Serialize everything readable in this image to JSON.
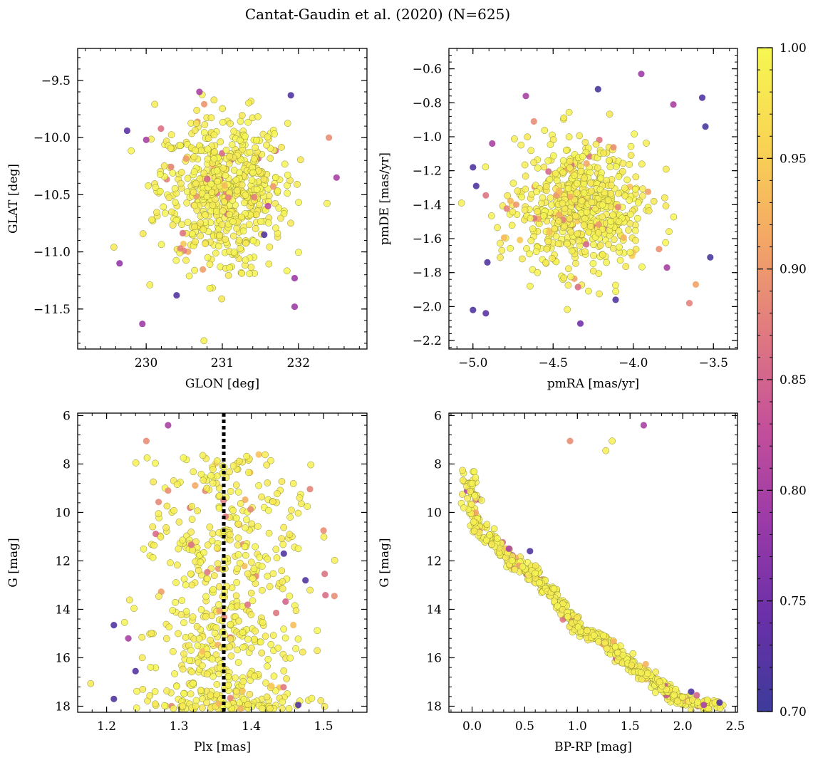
{
  "figure_title": "Cantat-Gaudin et al. (2020) (N=625)",
  "chart_data": [
    {
      "type": "scatter",
      "id": "glon-glat",
      "title": "",
      "xlabel": "GLON [deg]",
      "ylabel": "GLAT [deg]",
      "xlim": [
        229.1,
        232.9
      ],
      "ylim": [
        -11.85,
        -9.22
      ],
      "xticks": [
        230,
        231,
        232
      ],
      "xtick_labels": [
        "230",
        "231",
        "232"
      ],
      "yticks": [
        -9.5,
        -10.0,
        -10.5,
        -11.0,
        -11.5
      ],
      "ytick_labels": [
        "−9.5",
        "−10.0",
        "−10.5",
        "−11.0",
        "−11.5"
      ],
      "highlight_points": [
        {
          "x": 232.5,
          "y": -10.35,
          "p": 0.8
        },
        {
          "x": 231.9,
          "y": -9.63,
          "p": 0.72
        },
        {
          "x": 229.65,
          "y": -11.1,
          "p": 0.78
        },
        {
          "x": 229.95,
          "y": -11.63,
          "p": 0.79
        },
        {
          "x": 230.4,
          "y": -11.38,
          "p": 0.72
        },
        {
          "x": 231.95,
          "y": -11.48,
          "p": 0.79
        },
        {
          "x": 232.4,
          "y": -10.0,
          "p": 0.89
        },
        {
          "x": 229.75,
          "y": -9.94,
          "p": 0.73
        },
        {
          "x": 230.0,
          "y": -10.02,
          "p": 0.8
        },
        {
          "x": 230.45,
          "y": -10.97,
          "p": 0.88
        },
        {
          "x": 231.55,
          "y": -10.85,
          "p": 0.72
        },
        {
          "x": 231.95,
          "y": -11.23,
          "p": 0.79
        },
        {
          "x": 230.7,
          "y": -9.6,
          "p": 0.8
        },
        {
          "x": 231.6,
          "y": -10.6,
          "p": 0.82
        }
      ],
      "cluster": {
        "x_center": 231.0,
        "y_center": -10.45,
        "x_sd": 0.42,
        "y_sd": 0.33,
        "n": 600
      }
    },
    {
      "type": "scatter",
      "id": "pm",
      "title": "",
      "xlabel": "pmRA [mas/yr]",
      "ylabel": "pmDE [mas/yr]",
      "xlim": [
        -5.15,
        -3.35
      ],
      "ylim": [
        -2.25,
        -0.48
      ],
      "xticks": [
        -5.0,
        -4.5,
        -4.0,
        -3.5
      ],
      "xtick_labels": [
        "−5.0",
        "−4.5",
        "−4.0",
        "−3.5"
      ],
      "yticks": [
        -0.6,
        -0.8,
        -1.0,
        -1.2,
        -1.4,
        -1.6,
        -1.8,
        -2.0,
        -2.2
      ],
      "ytick_labels": [
        "−0.6",
        "−0.8",
        "−1.0",
        "−1.2",
        "−1.4",
        "−1.6",
        "−1.8",
        "−2.0",
        "−2.2"
      ],
      "highlight_points": [
        {
          "x": -3.95,
          "y": -0.63,
          "p": 0.79
        },
        {
          "x": -4.22,
          "y": -0.72,
          "p": 0.71
        },
        {
          "x": -3.57,
          "y": -0.77,
          "p": 0.72
        },
        {
          "x": -3.55,
          "y": -0.94,
          "p": 0.71
        },
        {
          "x": -5.0,
          "y": -1.18,
          "p": 0.72
        },
        {
          "x": -4.98,
          "y": -1.29,
          "p": 0.72
        },
        {
          "x": -4.91,
          "y": -1.74,
          "p": 0.72
        },
        {
          "x": -5.0,
          "y": -2.02,
          "p": 0.72
        },
        {
          "x": -4.92,
          "y": -2.04,
          "p": 0.73
        },
        {
          "x": -3.52,
          "y": -1.71,
          "p": 0.71
        },
        {
          "x": -4.33,
          "y": -2.1,
          "p": 0.75
        },
        {
          "x": -4.11,
          "y": -1.96,
          "p": 0.72
        },
        {
          "x": -3.65,
          "y": -1.98,
          "p": 0.88
        },
        {
          "x": -3.61,
          "y": -1.87,
          "p": 0.91
        },
        {
          "x": -4.62,
          "y": -0.91,
          "p": 0.89
        },
        {
          "x": -4.67,
          "y": -0.76,
          "p": 0.8
        },
        {
          "x": -4.88,
          "y": -1.04,
          "p": 0.8
        },
        {
          "x": -3.75,
          "y": -0.81,
          "p": 0.8
        },
        {
          "x": -4.73,
          "y": -1.4,
          "p": 0.9
        },
        {
          "x": -3.79,
          "y": -1.77,
          "p": 0.8
        }
      ],
      "cluster": {
        "x_center": -4.32,
        "y_center": -1.42,
        "x_sd": 0.2,
        "y_sd": 0.19,
        "n": 600
      }
    },
    {
      "type": "scatter",
      "id": "plx-g",
      "title": "",
      "xlabel": "Plx [mas]",
      "ylabel": "G [mag]",
      "xlim": [
        1.16,
        1.56
      ],
      "ylim": [
        18.25,
        5.9
      ],
      "y_inverted": true,
      "xticks": [
        1.2,
        1.3,
        1.4,
        1.5
      ],
      "xtick_labels": [
        "1.2",
        "1.3",
        "1.4",
        "1.5"
      ],
      "yticks": [
        6,
        8,
        10,
        12,
        14,
        16,
        18
      ],
      "ytick_labels": [
        "6",
        "8",
        "10",
        "12",
        "14",
        "16",
        "18"
      ],
      "vline": {
        "x": 1.362,
        "style": "dotted"
      },
      "highlight_points": [
        {
          "x": 1.285,
          "y": 6.4,
          "p": 0.8
        },
        {
          "x": 1.255,
          "y": 7.05,
          "p": 0.89
        },
        {
          "x": 1.5,
          "y": 10.75,
          "p": 0.89
        },
        {
          "x": 1.515,
          "y": 13.45,
          "p": 0.89
        },
        {
          "x": 1.21,
          "y": 14.65,
          "p": 0.72
        },
        {
          "x": 1.445,
          "y": 11.7,
          "p": 0.72
        },
        {
          "x": 1.475,
          "y": 12.8,
          "p": 0.72
        },
        {
          "x": 1.21,
          "y": 17.7,
          "p": 0.72
        },
        {
          "x": 1.24,
          "y": 16.55,
          "p": 0.72
        },
        {
          "x": 1.465,
          "y": 17.95,
          "p": 0.72
        },
        {
          "x": 1.23,
          "y": 15.2,
          "p": 0.8
        },
        {
          "x": 1.285,
          "y": 9.1,
          "p": 0.89
        }
      ],
      "cluster": {
        "x_center": 1.365,
        "y_center": 14.2,
        "x_sd": 0.055,
        "y_sd": 2.2,
        "n": 600
      }
    },
    {
      "type": "scatter",
      "id": "cmd",
      "title": "",
      "xlabel": "BP-RP [mag]",
      "ylabel": "G [mag]",
      "xlim": [
        -0.22,
        2.52
      ],
      "ylim": [
        18.25,
        5.9
      ],
      "y_inverted": true,
      "xticks": [
        0.0,
        0.5,
        1.0,
        1.5,
        2.0,
        2.5
      ],
      "xtick_labels": [
        "0.0",
        "0.5",
        "1.0",
        "1.5",
        "2.0",
        "2.5"
      ],
      "yticks": [
        6,
        8,
        10,
        12,
        14,
        16,
        18
      ],
      "ytick_labels": [
        "6",
        "8",
        "10",
        "12",
        "14",
        "16",
        "18"
      ],
      "highlight_points": [
        {
          "x": 1.63,
          "y": 6.4,
          "p": 0.8
        },
        {
          "x": 0.93,
          "y": 7.05,
          "p": 0.89
        },
        {
          "x": 2.35,
          "y": 17.85,
          "p": 0.72
        },
        {
          "x": 2.08,
          "y": 17.4,
          "p": 0.72
        },
        {
          "x": 2.2,
          "y": 17.95,
          "p": 0.8
        },
        {
          "x": 0.55,
          "y": 11.6,
          "p": 0.72
        },
        {
          "x": 0.35,
          "y": 11.5,
          "p": 0.8
        }
      ],
      "sequence": [
        [
          -0.05,
          8.0
        ],
        [
          0.0,
          9.5
        ],
        [
          0.05,
          10.5
        ],
        [
          0.2,
          11.2
        ],
        [
          0.4,
          12.0
        ],
        [
          0.6,
          12.6
        ],
        [
          0.8,
          13.6
        ],
        [
          1.0,
          14.7
        ],
        [
          1.2,
          15.2
        ],
        [
          1.4,
          15.9
        ],
        [
          1.6,
          16.6
        ],
        [
          1.8,
          17.2
        ],
        [
          2.0,
          17.8
        ],
        [
          2.35,
          18.0
        ]
      ],
      "extra_points": [
        {
          "x": 1.27,
          "y": 7.45
        },
        {
          "x": 1.33,
          "y": 7.05
        }
      ],
      "n": 600
    }
  ],
  "colorbar": {
    "label": "",
    "vmin": 0.7,
    "vmax": 1.0,
    "ticks": [
      1.0,
      0.95,
      0.9,
      0.85,
      0.8,
      0.75,
      0.7
    ],
    "tick_labels": [
      "1.00",
      "0.95",
      "0.90",
      "0.85",
      "0.80",
      "0.75",
      "0.70"
    ],
    "colormap": "plasma",
    "colors": [
      "#3d3b9a",
      "#6a30a8",
      "#9b3aa8",
      "#c4509a",
      "#e07a80",
      "#f4a865",
      "#f9d553",
      "#f6f752"
    ]
  }
}
